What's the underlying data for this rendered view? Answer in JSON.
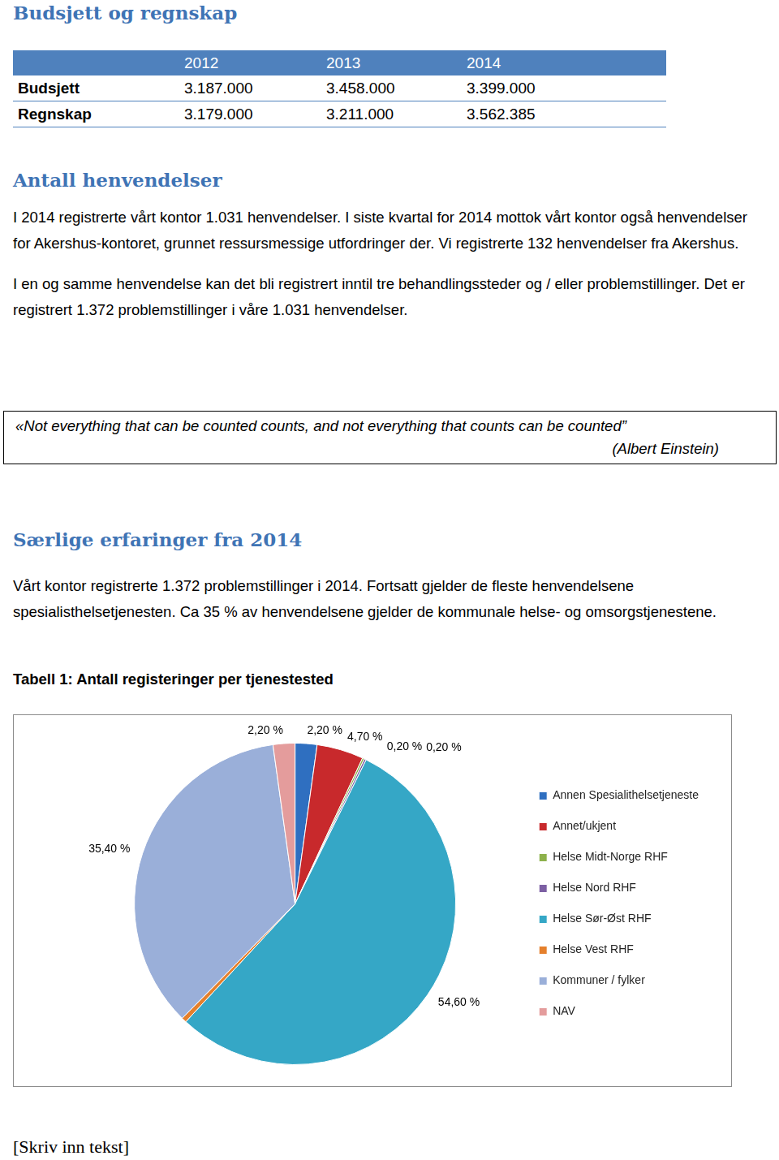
{
  "document": {
    "heading_1": "Budsjett og regnskap",
    "table": {
      "columns": [
        "2012",
        "2013",
        "2014"
      ],
      "rows": [
        [
          "Budsjett",
          "3.187.000",
          "3.458.000",
          "3.399.000"
        ],
        [
          "Regnskap",
          "3.179.000",
          "3.211.000",
          "3.562.385"
        ]
      ]
    },
    "heading_2": "Antall henvendelser",
    "paragraphs_2": [
      "I 2014 registrerte vårt kontor 1.031 henvendelser. I siste kvartal for 2014 mottok vårt kontor også henvendelser for Akershus-kontoret, grunnet ressursmessige utfordringer der. Vi registrerte 132 henvendelser fra Akershus.",
      "I en og samme henvendelse kan det bli registrert inntil tre behandlingssteder og / eller problemstillinger. Det er registrert 1.372 problemstillinger i våre 1.031 henvendelser."
    ],
    "quote": {
      "text": "«Not everything that can be counted counts, and not everything that counts can be counted”",
      "source": "(Albert Einstein)"
    },
    "heading_3": "Særlige erfaringer fra 2014",
    "paragraphs_3": [
      "Vårt kontor registrerte 1.372 problemstillinger i 2014. Fortsatt gjelder de fleste henvendelsene spesialisthelsetjenesten. Ca 35 % av henvendelsene gjelder de kommunale helse- og omsorgstjenestene."
    ],
    "caption": "Tabell 1: Antall registeringer per tjenestested",
    "footer": "[Skriv inn tekst]"
  },
  "chart_data": {
    "type": "pie",
    "categories": [
      "Annen Spesialithelsetjeneste",
      "Annet/ukjent",
      "Helse Midt-Norge RHF",
      "Helse Nord RHF",
      "Helse Sør-Øst RHF",
      "Helse Vest RHF",
      "Kommuner / fylker",
      "NAV"
    ],
    "values": [
      2.2,
      4.7,
      0.2,
      0.2,
      54.6,
      0.5,
      35.4,
      2.2
    ],
    "value_labels": [
      "2,20 %",
      "4,70 %",
      "0,20 %",
      "0,20 %",
      "54,60 %",
      null,
      "35,40 %",
      "2,20 %"
    ],
    "colors": [
      "#2f6fc0",
      "#c8292c",
      "#8db14b",
      "#7c5fa3",
      "#35a7c6",
      "#e5802c",
      "#9aafd9",
      "#e49c9c"
    ],
    "data_labels": true,
    "legend": "right"
  }
}
